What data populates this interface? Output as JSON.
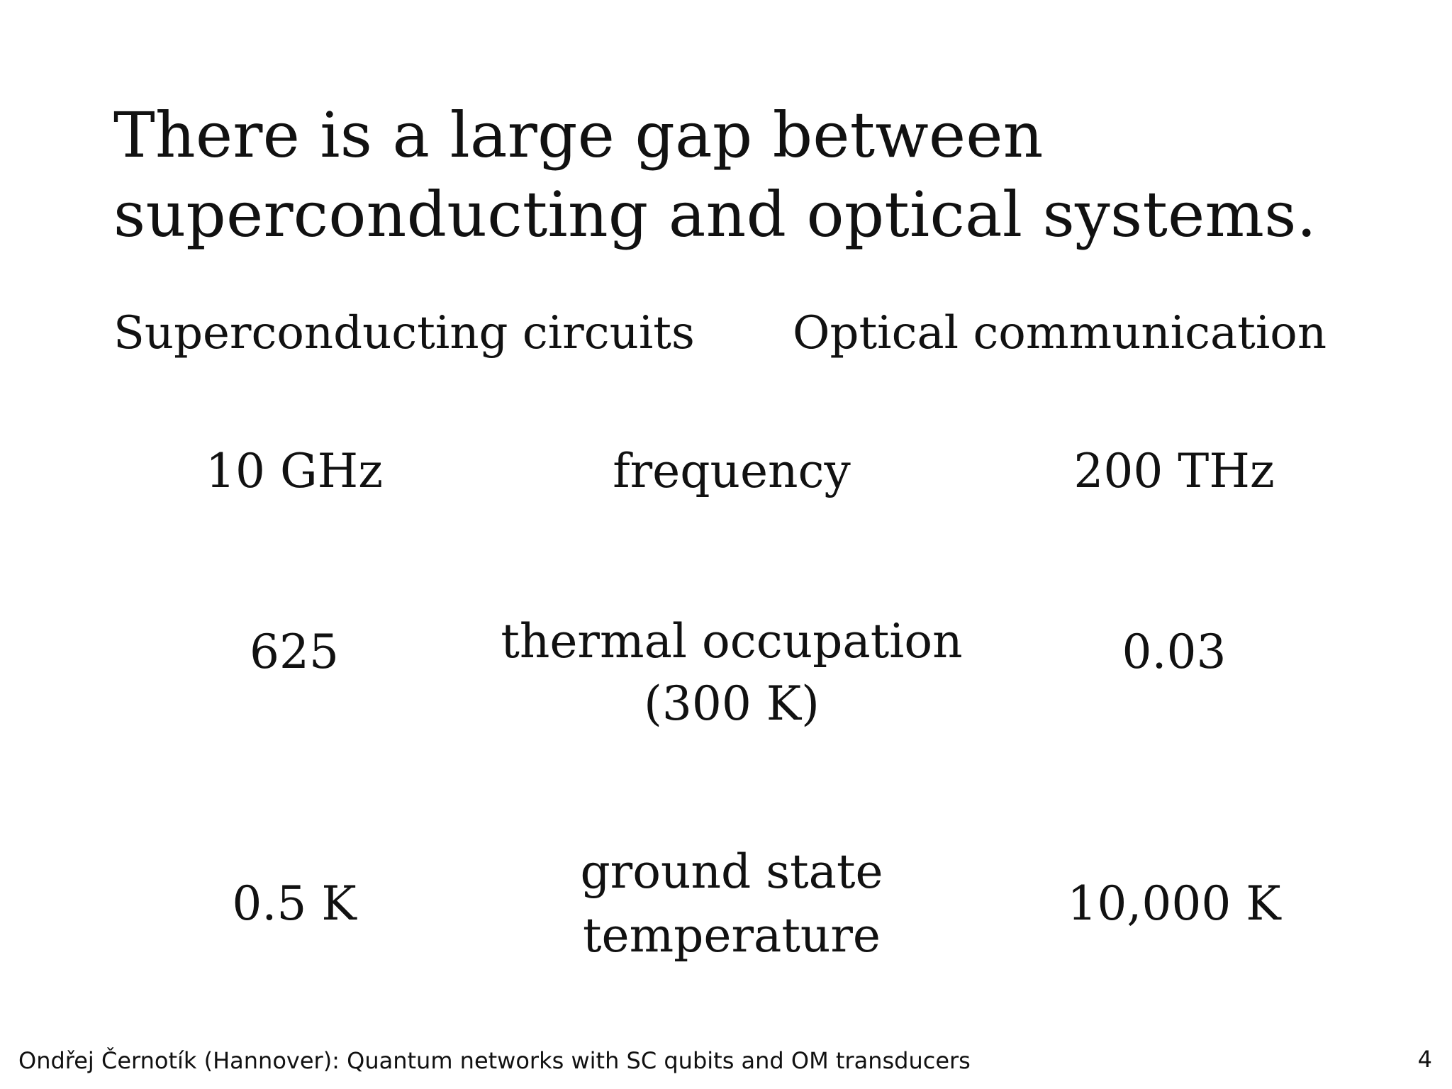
{
  "slide": {
    "title_lines": [
      "There is a large gap between",
      "superconducting and optical systems."
    ],
    "headers": {
      "left": "Superconducting circuits",
      "right": "Optical communication"
    },
    "rows": [
      {
        "left": "10 GHz",
        "middle": [
          "frequency"
        ],
        "right": "200 THz"
      },
      {
        "left": "625",
        "middle": [
          "thermal occupation",
          "(300 K)"
        ],
        "right": "0.03"
      },
      {
        "left": "0.5 K",
        "middle": [
          "ground state",
          "temperature"
        ],
        "right": "10,000 K"
      }
    ],
    "footer": "Ondřej Černotík (Hannover): Quantum networks with SC qubits and OM transducers",
    "page_number": "4"
  }
}
